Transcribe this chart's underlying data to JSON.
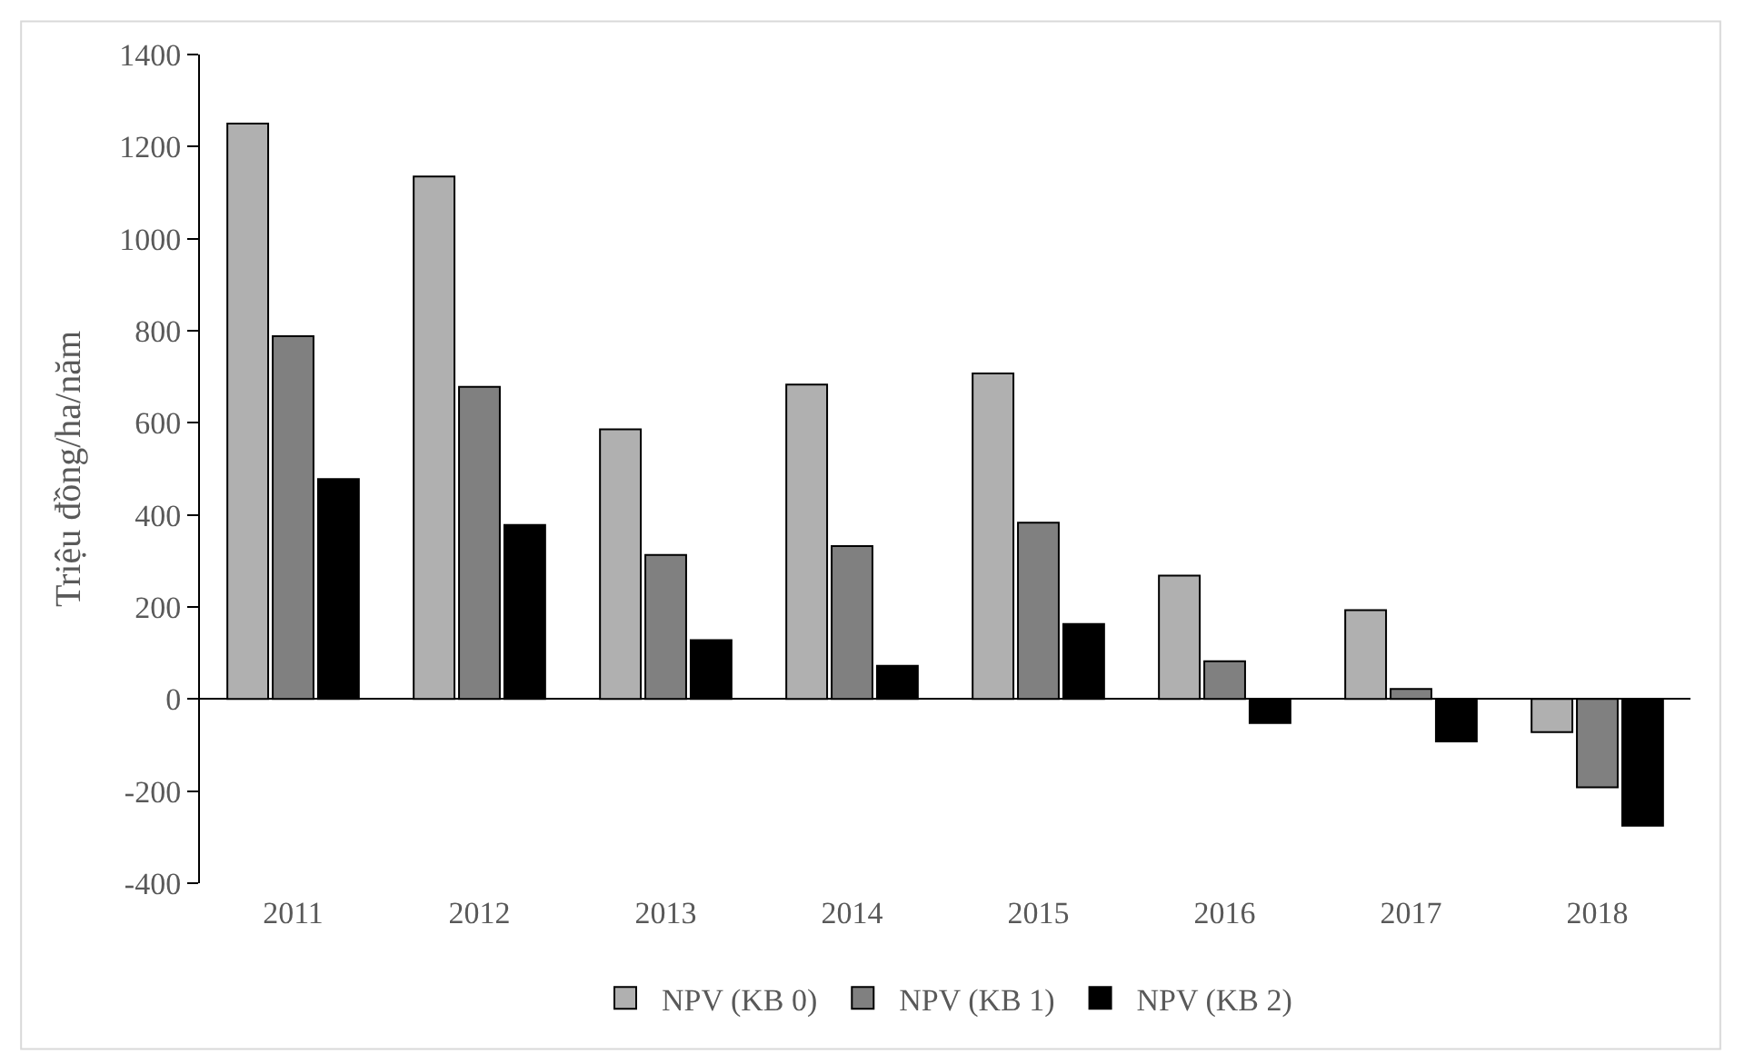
{
  "chart_data": {
    "type": "bar",
    "ylabel": "Triệu đồng/ha/năm",
    "categories": [
      "2011",
      "2012",
      "2013",
      "2014",
      "2015",
      "2016",
      "2017",
      "2018"
    ],
    "series": [
      {
        "name": "NPV (KB 0)",
        "color": "#b0b0b0",
        "values": [
          1250,
          1135,
          586,
          683,
          707,
          268,
          193,
          -72
        ]
      },
      {
        "name": "NPV (KB 1)",
        "color": "#808080",
        "values": [
          788,
          678,
          313,
          332,
          383,
          82,
          22,
          -192
        ]
      },
      {
        "name": "NPV (KB 2)",
        "color": "#000000",
        "values": [
          478,
          378,
          128,
          72,
          163,
          -52,
          -92,
          -275
        ]
      }
    ],
    "ylim": [
      -400,
      1400
    ],
    "yticks": [
      -400,
      -200,
      0,
      200,
      400,
      600,
      800,
      1000,
      1200,
      1400
    ],
    "legend": "bottom"
  }
}
